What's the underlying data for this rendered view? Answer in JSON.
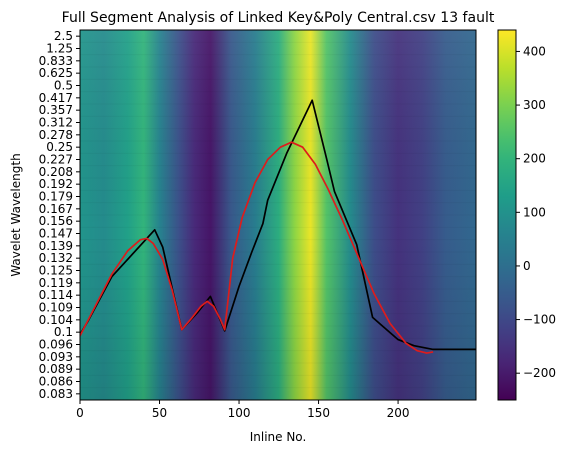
{
  "chart_data": {
    "type": "heatmap",
    "title": "Full Segment Analysis of Linked Key&Poly Central.csv 13 fault",
    "xlabel": "Inline No.",
    "ylabel": "Wavelet Wavelength",
    "xlim": [
      0,
      249
    ],
    "x_ticks": [
      0,
      50,
      100,
      150,
      200
    ],
    "y_tick_labels": [
      "2.5",
      "1.25",
      "0.833",
      "0.625",
      "0.5",
      "0.417",
      "0.357",
      "0.312",
      "0.278",
      "0.25",
      "0.227",
      "0.208",
      "0.192",
      "0.179",
      "0.167",
      "0.156",
      "0.147",
      "0.139",
      "0.132",
      "0.125",
      "0.119",
      "0.114",
      "0.109",
      "0.104",
      "0.1",
      "0.096",
      "0.093",
      "0.089",
      "0.086",
      "0.083"
    ],
    "colorbar": {
      "colormap": "viridis",
      "range": [
        -250,
        440
      ],
      "ticks": [
        -200,
        -100,
        0,
        100,
        200,
        300,
        400
      ]
    },
    "heatmap_column_profile": {
      "x": [
        0,
        15,
        30,
        40,
        50,
        62,
        72,
        82,
        95,
        110,
        125,
        135,
        145,
        155,
        170,
        185,
        200,
        215,
        230,
        249
      ],
      "values": [
        110,
        80,
        140,
        200,
        60,
        -80,
        -170,
        -210,
        -60,
        40,
        180,
        320,
        420,
        250,
        80,
        -90,
        -150,
        -120,
        -50,
        -20
      ]
    },
    "series": [
      {
        "name": "black curve",
        "color": "#000000",
        "x": [
          0,
          5,
          20,
          47,
          52,
          64,
          74,
          82,
          91,
          100,
          108,
          115,
          118,
          130,
          146,
          155,
          160,
          174,
          184,
          200,
          210,
          222,
          240,
          249
        ],
        "y_index": [
          24.2,
          23.1,
          19.5,
          15.7,
          17.1,
          23.8,
          22.4,
          21.1,
          23.9,
          20.3,
          17.5,
          15.2,
          13.3,
          9.5,
          5.2,
          9.9,
          12.6,
          16.9,
          22.8,
          24.6,
          25.1,
          25.4,
          25.4,
          25.4
        ]
      },
      {
        "name": "red fit",
        "color": "#dd1c1c",
        "x": [
          0,
          10,
          20,
          30,
          38,
          42,
          46,
          52,
          58,
          64,
          70,
          76,
          80,
          84,
          88,
          91,
          96,
          102,
          110,
          118,
          126,
          133,
          140,
          148,
          156,
          165,
          175,
          185,
          195,
          205,
          212,
          218,
          222
        ],
        "y_index": [
          24.3,
          21.8,
          19.3,
          17.4,
          16.5,
          16.4,
          16.8,
          18.1,
          20.6,
          23.8,
          22.9,
          21.9,
          21.5,
          21.9,
          22.9,
          23.8,
          18.0,
          14.7,
          11.9,
          10.0,
          9.0,
          8.6,
          9.0,
          10.4,
          12.4,
          14.9,
          17.9,
          20.9,
          23.3,
          24.9,
          25.5,
          25.7,
          25.6
        ]
      }
    ]
  }
}
